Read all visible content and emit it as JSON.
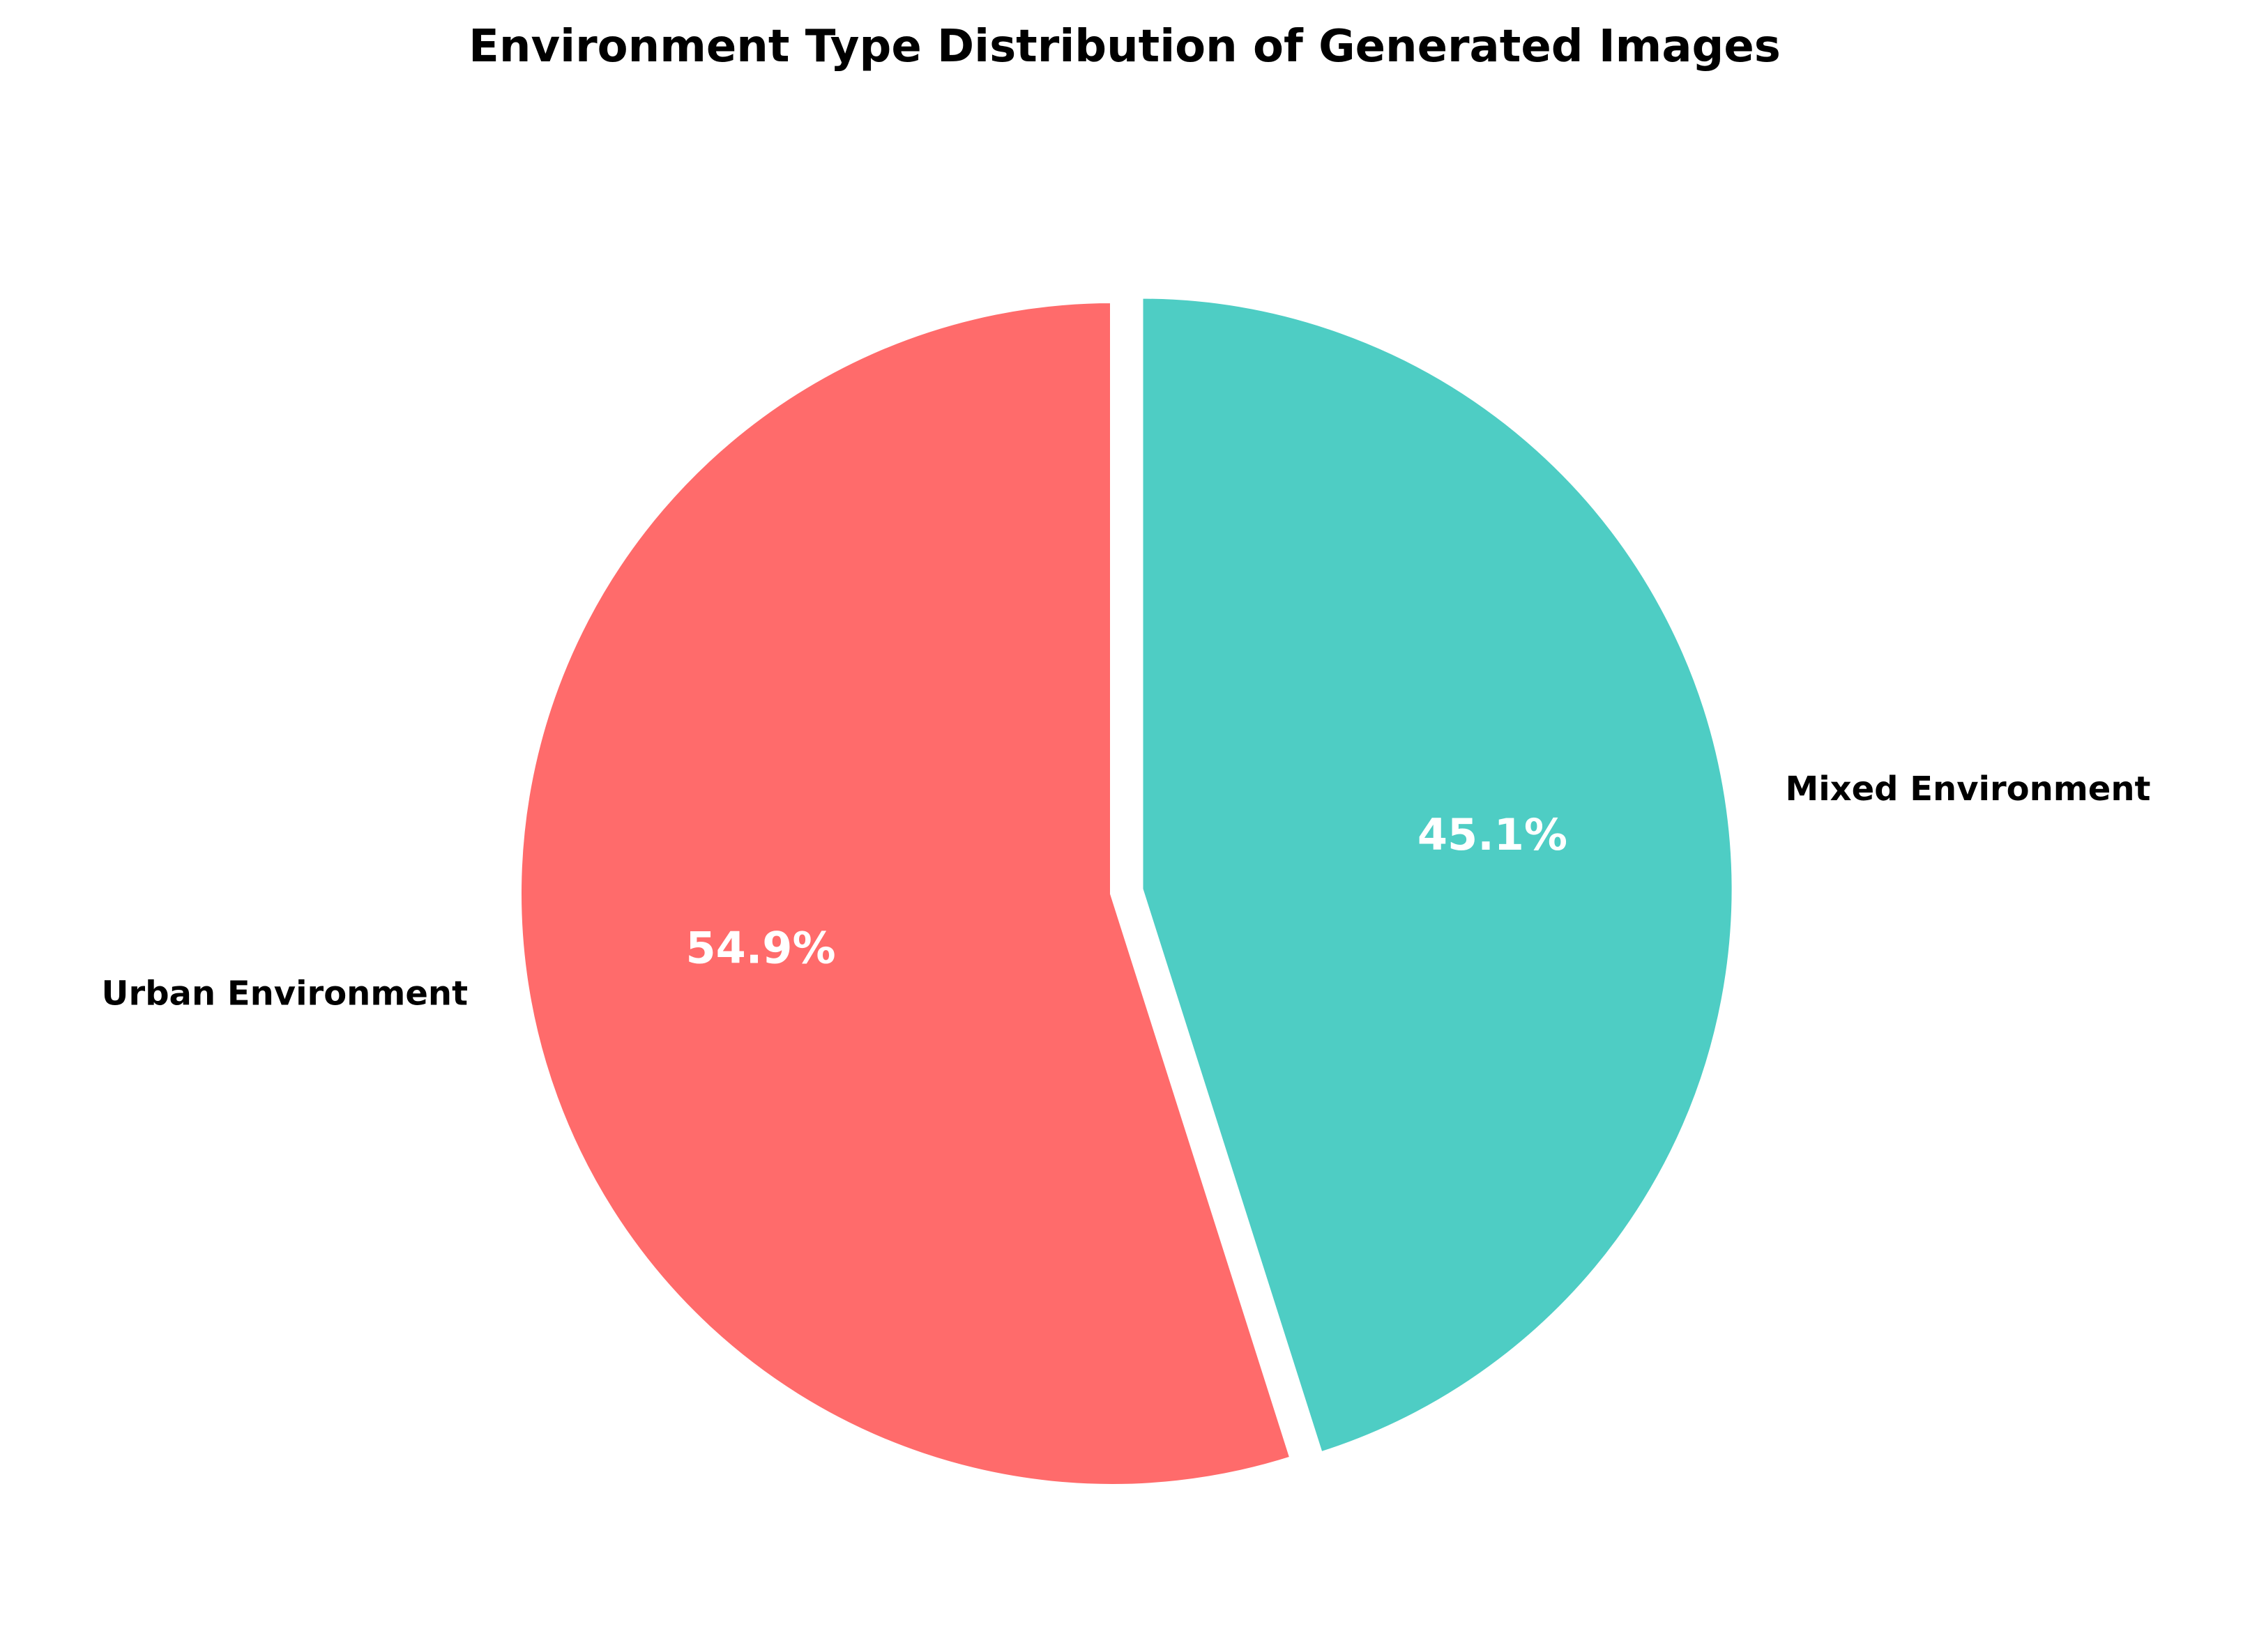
{
  "chart_data": {
    "type": "pie",
    "title": "Environment Type Distribution of Generated Images",
    "labels": [
      "Urban Environment",
      "Mixed Environment"
    ],
    "values": [
      54.9,
      45.1
    ],
    "value_labels": [
      "54.9%",
      "45.1%"
    ],
    "colors": [
      "#ff6b6b",
      "#4ecdc4"
    ],
    "start_angle_deg": 90,
    "direction": "counterclockwise",
    "exploded": [
      false,
      true
    ],
    "edge_color": "#ffffff",
    "legend": "none"
  }
}
